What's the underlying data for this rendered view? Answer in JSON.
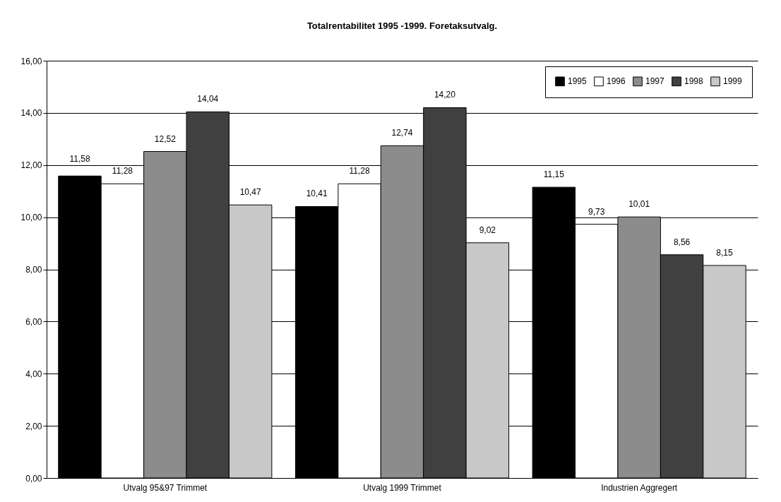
{
  "chart_data": {
    "type": "bar",
    "title": "Totalrentabilitet 1995 -1999. Foretaksutvalg.",
    "categories": [
      "Utvalg 95&97 Trimmet",
      "Utvalg 1999 Trimmet",
      "Industrien Aggregert"
    ],
    "series": [
      {
        "name": "1995",
        "color": "#000000",
        "values": [
          11.58,
          10.41,
          11.15
        ],
        "value_labels": [
          "11,58",
          "10,41",
          "11,15"
        ]
      },
      {
        "name": "1996",
        "color": "#ffffff",
        "values": [
          11.28,
          11.28,
          9.73
        ],
        "value_labels": [
          "11,28",
          "11,28",
          "9,73"
        ]
      },
      {
        "name": "1997",
        "color": "#8c8c8c",
        "values": [
          12.52,
          12.74,
          10.01
        ],
        "value_labels": [
          "12,52",
          "12,74",
          "10,01"
        ]
      },
      {
        "name": "1998",
        "color": "#404040",
        "values": [
          14.04,
          14.2,
          8.56
        ],
        "value_labels": [
          "14,04",
          "14,20",
          "8,56"
        ]
      },
      {
        "name": "1999",
        "color": "#c8c8c8",
        "values": [
          10.47,
          9.02,
          8.15
        ],
        "value_labels": [
          "10,47",
          "9,02",
          "8,15"
        ]
      }
    ],
    "ylim": [
      0,
      16
    ],
    "yticks": [
      {
        "value": 0,
        "label": "0,00"
      },
      {
        "value": 2,
        "label": "2,00"
      },
      {
        "value": 4,
        "label": "4,00"
      },
      {
        "value": 6,
        "label": "6,00"
      },
      {
        "value": 8,
        "label": "8,00"
      },
      {
        "value": 10,
        "label": "10,00"
      },
      {
        "value": 12,
        "label": "12,00"
      },
      {
        "value": 14,
        "label": "14,00"
      },
      {
        "value": 16,
        "label": "16,00"
      }
    ],
    "grid": "y",
    "legend": "top right"
  }
}
